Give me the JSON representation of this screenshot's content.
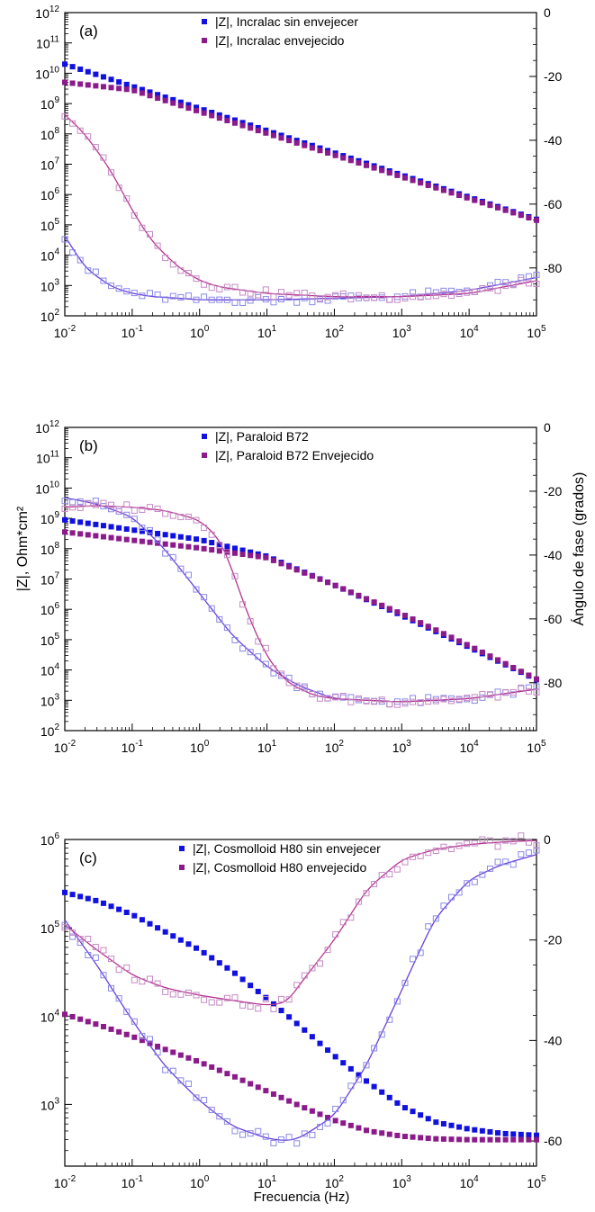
{
  "figure": {
    "ylabel_left": "|Z|, Ohm*cm²",
    "ylabel_right": "Ángulo de fase (grados)",
    "xlabel": "Frecuencia (Hz)"
  },
  "colors": {
    "unaged": "#1010e0",
    "aged": "#8b1a8b",
    "fit_unaged": "#6a3ed8",
    "fit_aged": "#b5338f",
    "phase_unaged": "#8a8ae8",
    "phase_aged": "#c58ac5"
  },
  "chart_data": [
    {
      "type": "scatter",
      "panel_label": "(a)",
      "xscale": "log",
      "xlim": [
        0.01,
        100000
      ],
      "x_ticks": [
        "10-2",
        "10-1",
        "100",
        "101",
        "102",
        "103",
        "104",
        "105"
      ],
      "y_left_scale": "log",
      "y_left_lim": [
        100,
        1000000000000
      ],
      "y_left_ticks": [
        "102",
        "103",
        "104",
        "105",
        "106",
        "107",
        "108",
        "109",
        "1010",
        "1011",
        "1012"
      ],
      "y_right_lim": [
        -95,
        0
      ],
      "y_right_ticks": [
        "0",
        "-20",
        "-40",
        "-60",
        "-80"
      ],
      "legend_position": "top-center",
      "series": [
        {
          "name": "|Z|, Incralac sin envejecer",
          "kind": "modulus",
          "group": "unaged",
          "marker": "filled-square",
          "log_x": [
            -2,
            7
          ],
          "log_y": [
            10.3,
            3.72
          ],
          "fit": false
        },
        {
          "name": "|Z|, Incralac envejecido",
          "kind": "modulus",
          "group": "aged",
          "marker": "filled-square",
          "log_x": [
            -2,
            -1,
            7
          ],
          "log_y": [
            9.7,
            9.45,
            3.72
          ],
          "fit": false
        },
        {
          "kind": "phase",
          "group": "unaged",
          "marker": "open-square",
          "x": [
            0.01,
            0.02,
            0.05,
            0.1,
            0.2,
            0.5,
            1,
            10,
            100,
            1000,
            10000,
            100000
          ],
          "y": [
            -70,
            -80,
            -86,
            -88,
            -89,
            -89.5,
            -90,
            -90,
            -89.5,
            -89,
            -87,
            -83
          ],
          "fit": true
        },
        {
          "kind": "phase",
          "group": "aged",
          "marker": "open-square",
          "x": [
            0.01,
            0.02,
            0.05,
            0.1,
            0.2,
            0.5,
            1,
            2,
            10,
            100,
            1000,
            10000,
            100000
          ],
          "y": [
            -32,
            -38,
            -50,
            -62,
            -72,
            -80,
            -84,
            -86,
            -88,
            -89,
            -89,
            -88,
            -84
          ],
          "fit": true
        }
      ]
    },
    {
      "type": "scatter",
      "panel_label": "(b)",
      "xscale": "log",
      "xlim": [
        0.01,
        100000
      ],
      "x_ticks": [
        "10-2",
        "10-1",
        "100",
        "101",
        "102",
        "103",
        "104",
        "105"
      ],
      "y_left_scale": "log",
      "y_left_lim": [
        100,
        1000000000000
      ],
      "y_left_ticks": [
        "102",
        "103",
        "104",
        "105",
        "106",
        "107",
        "108",
        "109",
        "1010",
        "1011",
        "1012"
      ],
      "y_right_lim": [
        -95,
        0
      ],
      "y_right_ticks": [
        "0",
        "-20",
        "-40",
        "-60",
        "-80"
      ],
      "legend_position": "top-center",
      "series": [
        {
          "name": "|Z|, Paraloid B72",
          "kind": "modulus",
          "group": "unaged",
          "marker": "filled-square",
          "log_x": [
            -2,
            -1,
            0,
            1,
            2,
            3,
            4,
            5
          ],
          "log_y": [
            8.95,
            8.62,
            8.3,
            7.75,
            6.8,
            5.8,
            4.75,
            3.68
          ],
          "fit": false
        },
        {
          "name": "|Z|, Paraloid B72 Envejecido",
          "kind": "modulus",
          "group": "aged",
          "marker": "filled-square",
          "log_x": [
            -2,
            -1,
            0,
            1,
            2,
            3,
            4,
            5
          ],
          "log_y": [
            8.55,
            8.28,
            8.02,
            7.7,
            6.8,
            5.85,
            4.8,
            3.7
          ],
          "fit": false
        },
        {
          "kind": "phase",
          "group": "unaged",
          "marker": "open-square",
          "x": [
            0.01,
            0.03,
            0.1,
            0.3,
            1,
            3,
            10,
            30,
            100,
            1000,
            10000,
            100000
          ],
          "y": [
            -22,
            -24,
            -28,
            -38,
            -52,
            -65,
            -75,
            -81,
            -85,
            -86,
            -85,
            -82
          ],
          "fit": true
        },
        {
          "kind": "phase",
          "group": "aged",
          "marker": "open-square",
          "x": [
            0.01,
            0.03,
            0.1,
            0.3,
            1,
            2,
            3,
            5,
            10,
            20,
            50,
            100,
            1000,
            10000,
            100000
          ],
          "y": [
            -25,
            -24.5,
            -25,
            -26,
            -29,
            -35,
            -44,
            -58,
            -72,
            -80,
            -84,
            -85,
            -86,
            -85,
            -82
          ],
          "fit": true
        }
      ]
    },
    {
      "type": "scatter",
      "panel_label": "(c)",
      "xscale": "log",
      "xlim": [
        0.01,
        100000
      ],
      "x_ticks": [
        "10-2",
        "10-1",
        "100",
        "101",
        "102",
        "103",
        "104",
        "105"
      ],
      "y_left_scale": "log",
      "y_left_lim": [
        200,
        1000000
      ],
      "y_left_ticks": [
        "103",
        "104",
        "105",
        "106"
      ],
      "y_right_lim": [
        -65,
        0
      ],
      "y_right_ticks": [
        "0",
        "-20",
        "-40",
        "-60"
      ],
      "legend_position": "top-center",
      "series": [
        {
          "name": "|Z|, Cosmolloid H80 sin envejecer",
          "kind": "modulus",
          "group": "unaged",
          "marker": "filled-square",
          "log_x": [
            -2,
            -1.5,
            -1,
            -0.5,
            0,
            0.5,
            1,
            1.5,
            2,
            2.5,
            3,
            3.5,
            4,
            4.5,
            5
          ],
          "log_y": [
            5.4,
            5.3,
            5.15,
            4.95,
            4.75,
            4.5,
            4.2,
            3.88,
            3.55,
            3.25,
            2.98,
            2.8,
            2.72,
            2.67,
            2.65
          ],
          "fit": false
        },
        {
          "name": "|Z|, Cosmolloid H80 envejecido",
          "kind": "modulus",
          "group": "aged",
          "marker": "filled-square",
          "log_x": [
            -2,
            -1.5,
            -1,
            -0.5,
            0,
            0.5,
            1,
            1.5,
            2,
            2.5,
            3,
            3.5,
            4,
            4.5,
            5
          ],
          "log_y": [
            4.02,
            3.9,
            3.77,
            3.62,
            3.48,
            3.32,
            3.15,
            2.98,
            2.82,
            2.7,
            2.64,
            2.61,
            2.6,
            2.6,
            2.6
          ],
          "fit": false
        },
        {
          "kind": "phase",
          "group": "unaged",
          "marker": "open-square",
          "x": [
            0.01,
            0.03,
            0.1,
            0.3,
            1,
            3,
            10,
            20,
            30,
            100,
            300,
            1000,
            3000,
            10000,
            30000,
            100000
          ],
          "y": [
            -16,
            -25,
            -36,
            -45,
            -52,
            -57,
            -59.5,
            -60,
            -59.5,
            -55,
            -45,
            -30,
            -16,
            -8,
            -5,
            -3
          ],
          "fit": true
        },
        {
          "kind": "phase",
          "group": "aged",
          "marker": "open-square",
          "x": [
            0.01,
            0.03,
            0.1,
            0.3,
            1,
            3,
            10,
            20,
            30,
            100,
            300,
            1000,
            3000,
            10000,
            30000,
            100000
          ],
          "y": [
            -17,
            -22,
            -27,
            -29.5,
            -31,
            -32,
            -33,
            -32.5,
            -29,
            -20,
            -10,
            -4,
            -2,
            -1,
            -0.5,
            -0.2
          ],
          "fit": true
        }
      ]
    }
  ]
}
